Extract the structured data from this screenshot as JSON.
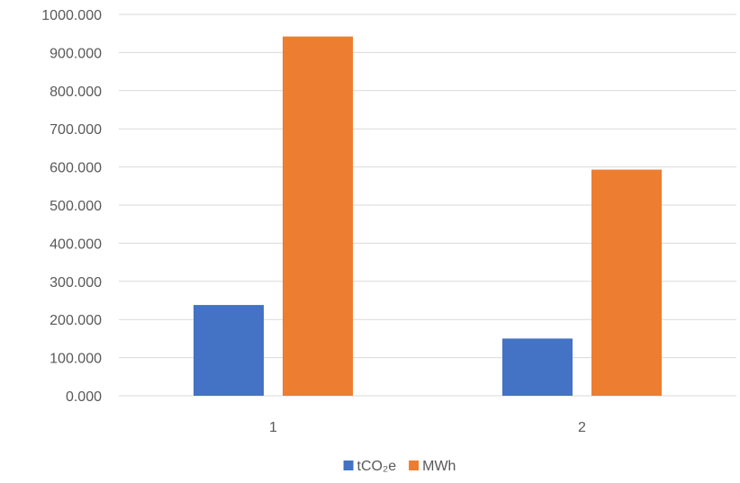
{
  "chart_data": {
    "type": "bar",
    "categories": [
      "1",
      "2"
    ],
    "series": [
      {
        "name": "tCO₂e",
        "values": [
          238,
          150
        ],
        "color": "#4472C4"
      },
      {
        "name": "MWh",
        "values": [
          942,
          593
        ],
        "color": "#ED7D31"
      }
    ],
    "ylim": [
      0,
      1000
    ],
    "yticks": [
      "0.000",
      "100.000",
      "200.000",
      "300.000",
      "400.000",
      "500.000",
      "600.000",
      "700.000",
      "800.000",
      "900.000",
      "1000.000"
    ],
    "grid": true,
    "gridColor": "#D9D9D9",
    "legend": "bottom"
  }
}
